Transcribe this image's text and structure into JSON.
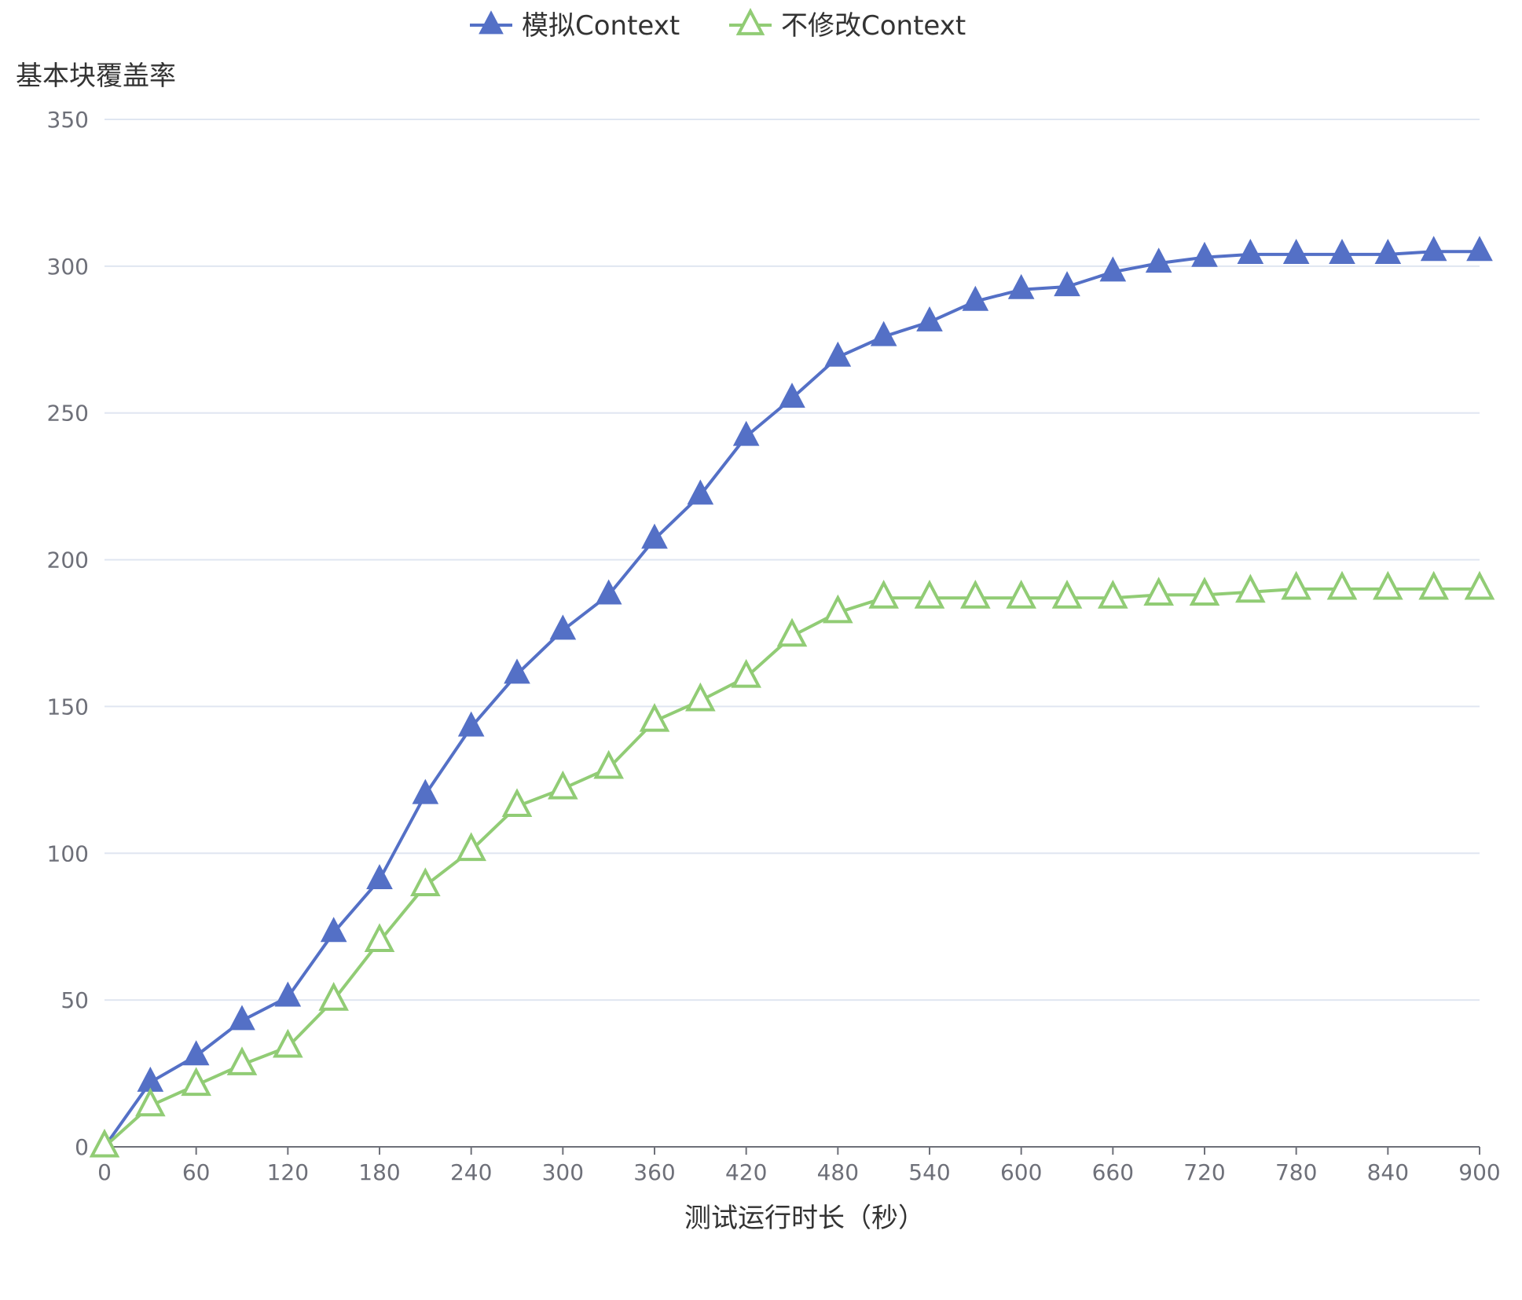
{
  "chart_data": {
    "type": "line",
    "ylabel": "基本块覆盖率",
    "xlabel": "测试运行时长（秒）",
    "ylim": [
      0,
      350
    ],
    "xlim": [
      0,
      900
    ],
    "y_ticks": [
      "0",
      "50",
      "100",
      "150",
      "200",
      "250",
      "300",
      "350"
    ],
    "x_ticks": [
      "0",
      "60",
      "120",
      "180",
      "240",
      "300",
      "360",
      "420",
      "480",
      "540",
      "600",
      "660",
      "720",
      "780",
      "840",
      "900"
    ],
    "x": [
      0,
      30,
      60,
      90,
      120,
      150,
      180,
      210,
      240,
      270,
      300,
      330,
      360,
      390,
      420,
      450,
      480,
      510,
      540,
      570,
      600,
      630,
      660,
      690,
      720,
      750,
      780,
      810,
      840,
      870,
      900
    ],
    "grid": true,
    "legend_position": "top-center",
    "series": [
      {
        "name": "模拟Context",
        "color": "#5470c6",
        "marker": "triangle-filled",
        "values": [
          0,
          22,
          31,
          43,
          51,
          73,
          91,
          120,
          143,
          161,
          176,
          188,
          207,
          222,
          242,
          255,
          269,
          276,
          281,
          288,
          292,
          293,
          298,
          301,
          303,
          304,
          304,
          304,
          304,
          305,
          305
        ]
      },
      {
        "name": "不修改Context",
        "color": "#91cc75",
        "marker": "triangle-empty",
        "values": [
          0,
          14,
          21,
          28,
          34,
          50,
          70,
          89,
          101,
          116,
          122,
          129,
          145,
          152,
          160,
          174,
          182,
          187,
          187,
          187,
          187,
          187,
          187,
          188,
          188,
          189,
          190,
          190,
          190,
          190,
          190
        ]
      }
    ]
  }
}
